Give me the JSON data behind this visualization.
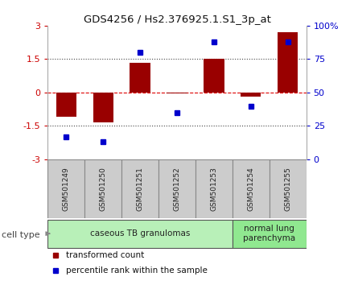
{
  "title": "GDS4256 / Hs2.376925.1.S1_3p_at",
  "samples": [
    "GSM501249",
    "GSM501250",
    "GSM501251",
    "GSM501252",
    "GSM501253",
    "GSM501254",
    "GSM501255"
  ],
  "red_values": [
    -1.1,
    -1.35,
    1.35,
    -0.05,
    1.5,
    -0.2,
    2.7
  ],
  "blue_values": [
    17,
    13,
    80,
    35,
    88,
    40,
    88
  ],
  "ylim_left": [
    -3,
    3
  ],
  "ylim_right": [
    0,
    100
  ],
  "yticks_left": [
    -3,
    -1.5,
    0,
    1.5,
    3
  ],
  "ytick_labels_left": [
    "-3",
    "-1.5",
    "0",
    "1.5",
    "3"
  ],
  "yticks_right": [
    0,
    25,
    50,
    75,
    100
  ],
  "ytick_labels_right": [
    "0",
    "25",
    "50",
    "75",
    "100%"
  ],
  "hline_dotted": [
    -1.5,
    1.5
  ],
  "hline_dashed": 0,
  "bar_color": "#990000",
  "dot_color": "#0000cc",
  "groups": [
    {
      "label": "caseous TB granulomas",
      "samples": [
        0,
        1,
        2,
        3,
        4
      ],
      "color": "#b8f0b8"
    },
    {
      "label": "normal lung\nparenchyma",
      "samples": [
        5,
        6
      ],
      "color": "#90e890"
    }
  ],
  "legend_red": "transformed count",
  "legend_blue": "percentile rank within the sample",
  "cell_type_label": "cell type",
  "background_color": "#ffffff",
  "red_label_color": "#cc0000",
  "blue_label_color": "#0000cc",
  "sample_box_color": "#cccccc",
  "sample_box_border": "#888888",
  "group_border": "#555555"
}
